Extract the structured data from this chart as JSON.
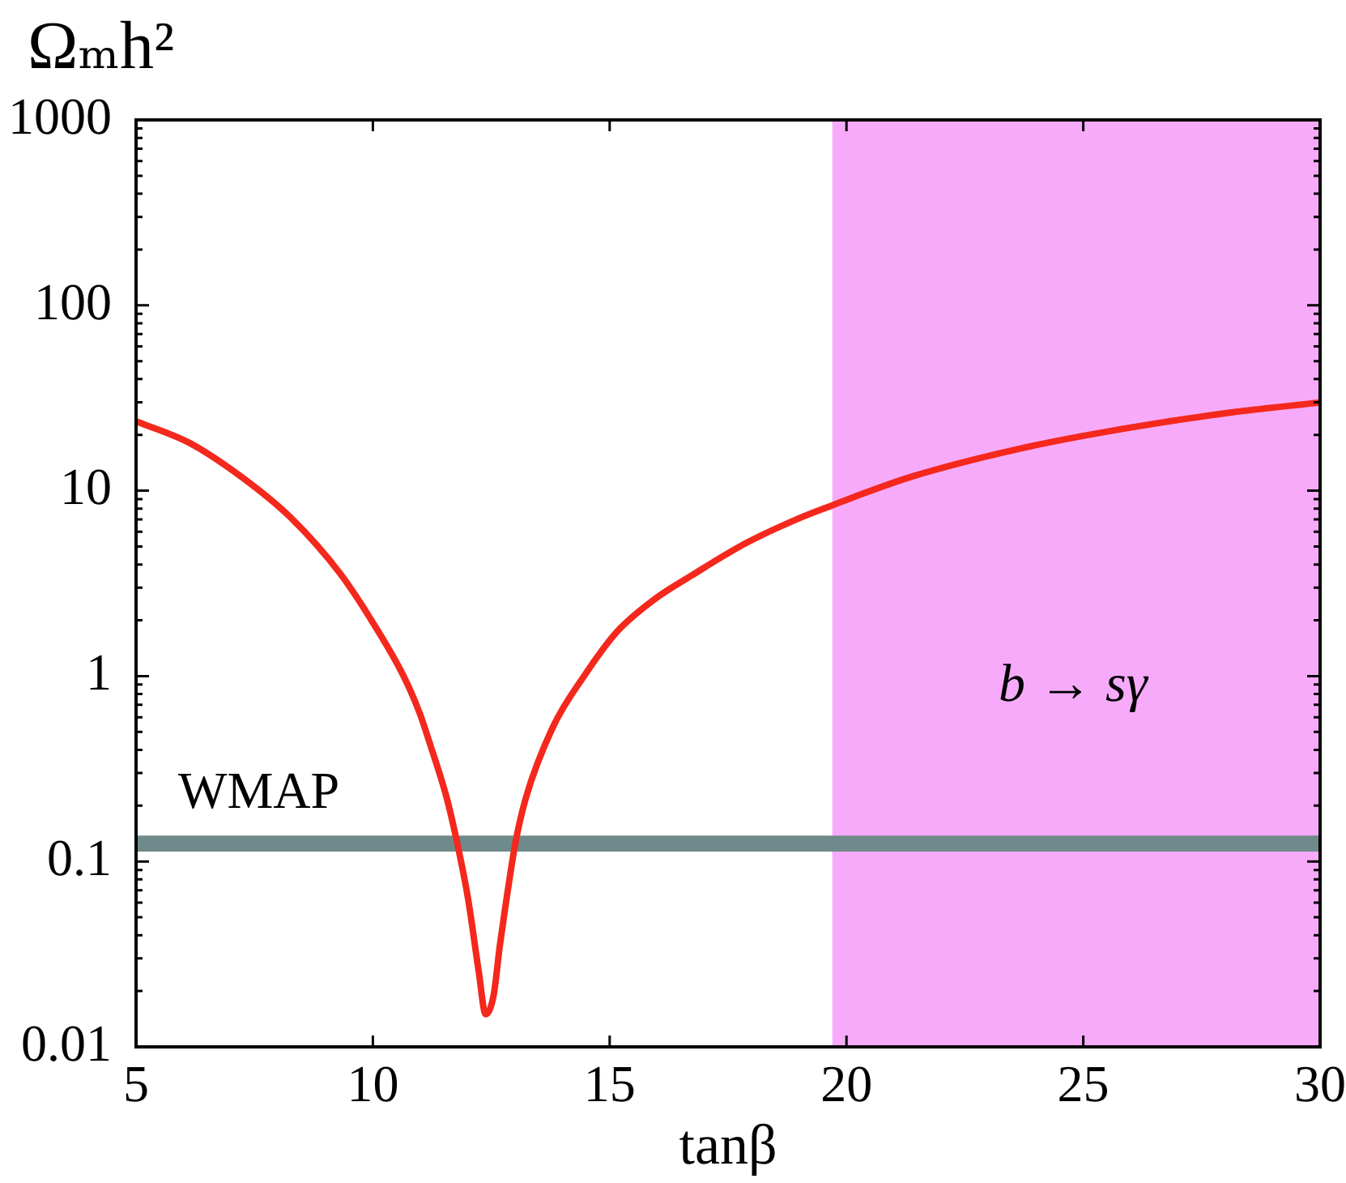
{
  "chart_data": {
    "type": "line",
    "xlabel": "tanβ",
    "ylabel": "Ωₘh²",
    "x": [
      5,
      6.13,
      7.26,
      8.28,
      9.3,
      9.97,
      10.65,
      10.99,
      11.22,
      11.56,
      11.78,
      12.01,
      12.24,
      12.38,
      12.55,
      12.68,
      12.78,
      13.01,
      13.23,
      13.8,
      14.47,
      15.15,
      15.95,
      16.74,
      17.87,
      19.0,
      19.73,
      20.13,
      21.37,
      23.63,
      25.9,
      28.16,
      30
    ],
    "values": [
      23.7,
      18.1,
      11.7,
      7.1,
      3.6,
      2.0,
      1.0,
      0.63,
      0.42,
      0.22,
      0.126,
      0.063,
      0.025,
      0.015,
      0.019,
      0.035,
      0.053,
      0.126,
      0.22,
      0.53,
      1.01,
      1.73,
      2.6,
      3.5,
      5.2,
      7.1,
      8.4,
      9.2,
      11.9,
      16.8,
      21.7,
      26.5,
      29.9
    ],
    "color": "#f4281c",
    "marker": "none",
    "log": true,
    "xlim": [
      5,
      30
    ],
    "xticks": [
      5,
      10,
      15,
      20,
      25,
      30
    ],
    "ylim": [
      0.01,
      1000
    ],
    "yticks": [
      0.01,
      {
        "value": 0.02,
        "label": null
      },
      {
        "value": 0.03,
        "label": null
      },
      {
        "value": 0.04,
        "label": null
      },
      {
        "value": 0.05,
        "label": null
      },
      {
        "value": 0.06,
        "label": null
      },
      {
        "value": 0.07,
        "label": null
      },
      {
        "value": 0.08,
        "label": null
      },
      {
        "value": 0.09,
        "label": null
      },
      0.1,
      {
        "value": 0.2,
        "label": null
      },
      {
        "value": 0.3,
        "label": null
      },
      {
        "value": 0.4,
        "label": null
      },
      {
        "value": 0.5,
        "label": null
      },
      {
        "value": 0.6,
        "label": null
      },
      {
        "value": 0.7,
        "label": null
      },
      {
        "value": 0.8,
        "label": null
      },
      {
        "value": 0.9,
        "label": null
      },
      1,
      {
        "value": 2,
        "label": null
      },
      {
        "value": 3,
        "label": null
      },
      {
        "value": 4,
        "label": null
      },
      {
        "value": 5,
        "label": null
      },
      {
        "value": 6,
        "label": null
      },
      {
        "value": 7,
        "label": null
      },
      {
        "value": 8,
        "label": null
      },
      {
        "value": 9,
        "label": null
      },
      10,
      {
        "value": 20,
        "label": null
      },
      {
        "value": 30,
        "label": null
      },
      {
        "value": 40,
        "label": null
      },
      {
        "value": 50,
        "label": null
      },
      {
        "value": 60,
        "label": null
      },
      {
        "value": 70,
        "label": null
      },
      {
        "value": 80,
        "label": null
      },
      {
        "value": 90,
        "label": null
      },
      100,
      {
        "value": 200,
        "label": null
      },
      {
        "value": 300,
        "label": null
      },
      {
        "value": 400,
        "label": null
      },
      {
        "value": 500,
        "label": null
      },
      {
        "value": 600,
        "label": null
      },
      {
        "value": 700,
        "label": null
      },
      {
        "value": 800,
        "label": null
      },
      {
        "value": 900,
        "label": null
      },
      1000
    ],
    "bands": [
      {
        "axis": "x",
        "from": 19.7,
        "to": 30,
        "label": "b → sγ",
        "color": "#f8aafa"
      },
      {
        "axis": "y",
        "from": 0.113,
        "to": 0.138,
        "label": "WMAP",
        "color": "#6e8a8a"
      }
    ]
  }
}
